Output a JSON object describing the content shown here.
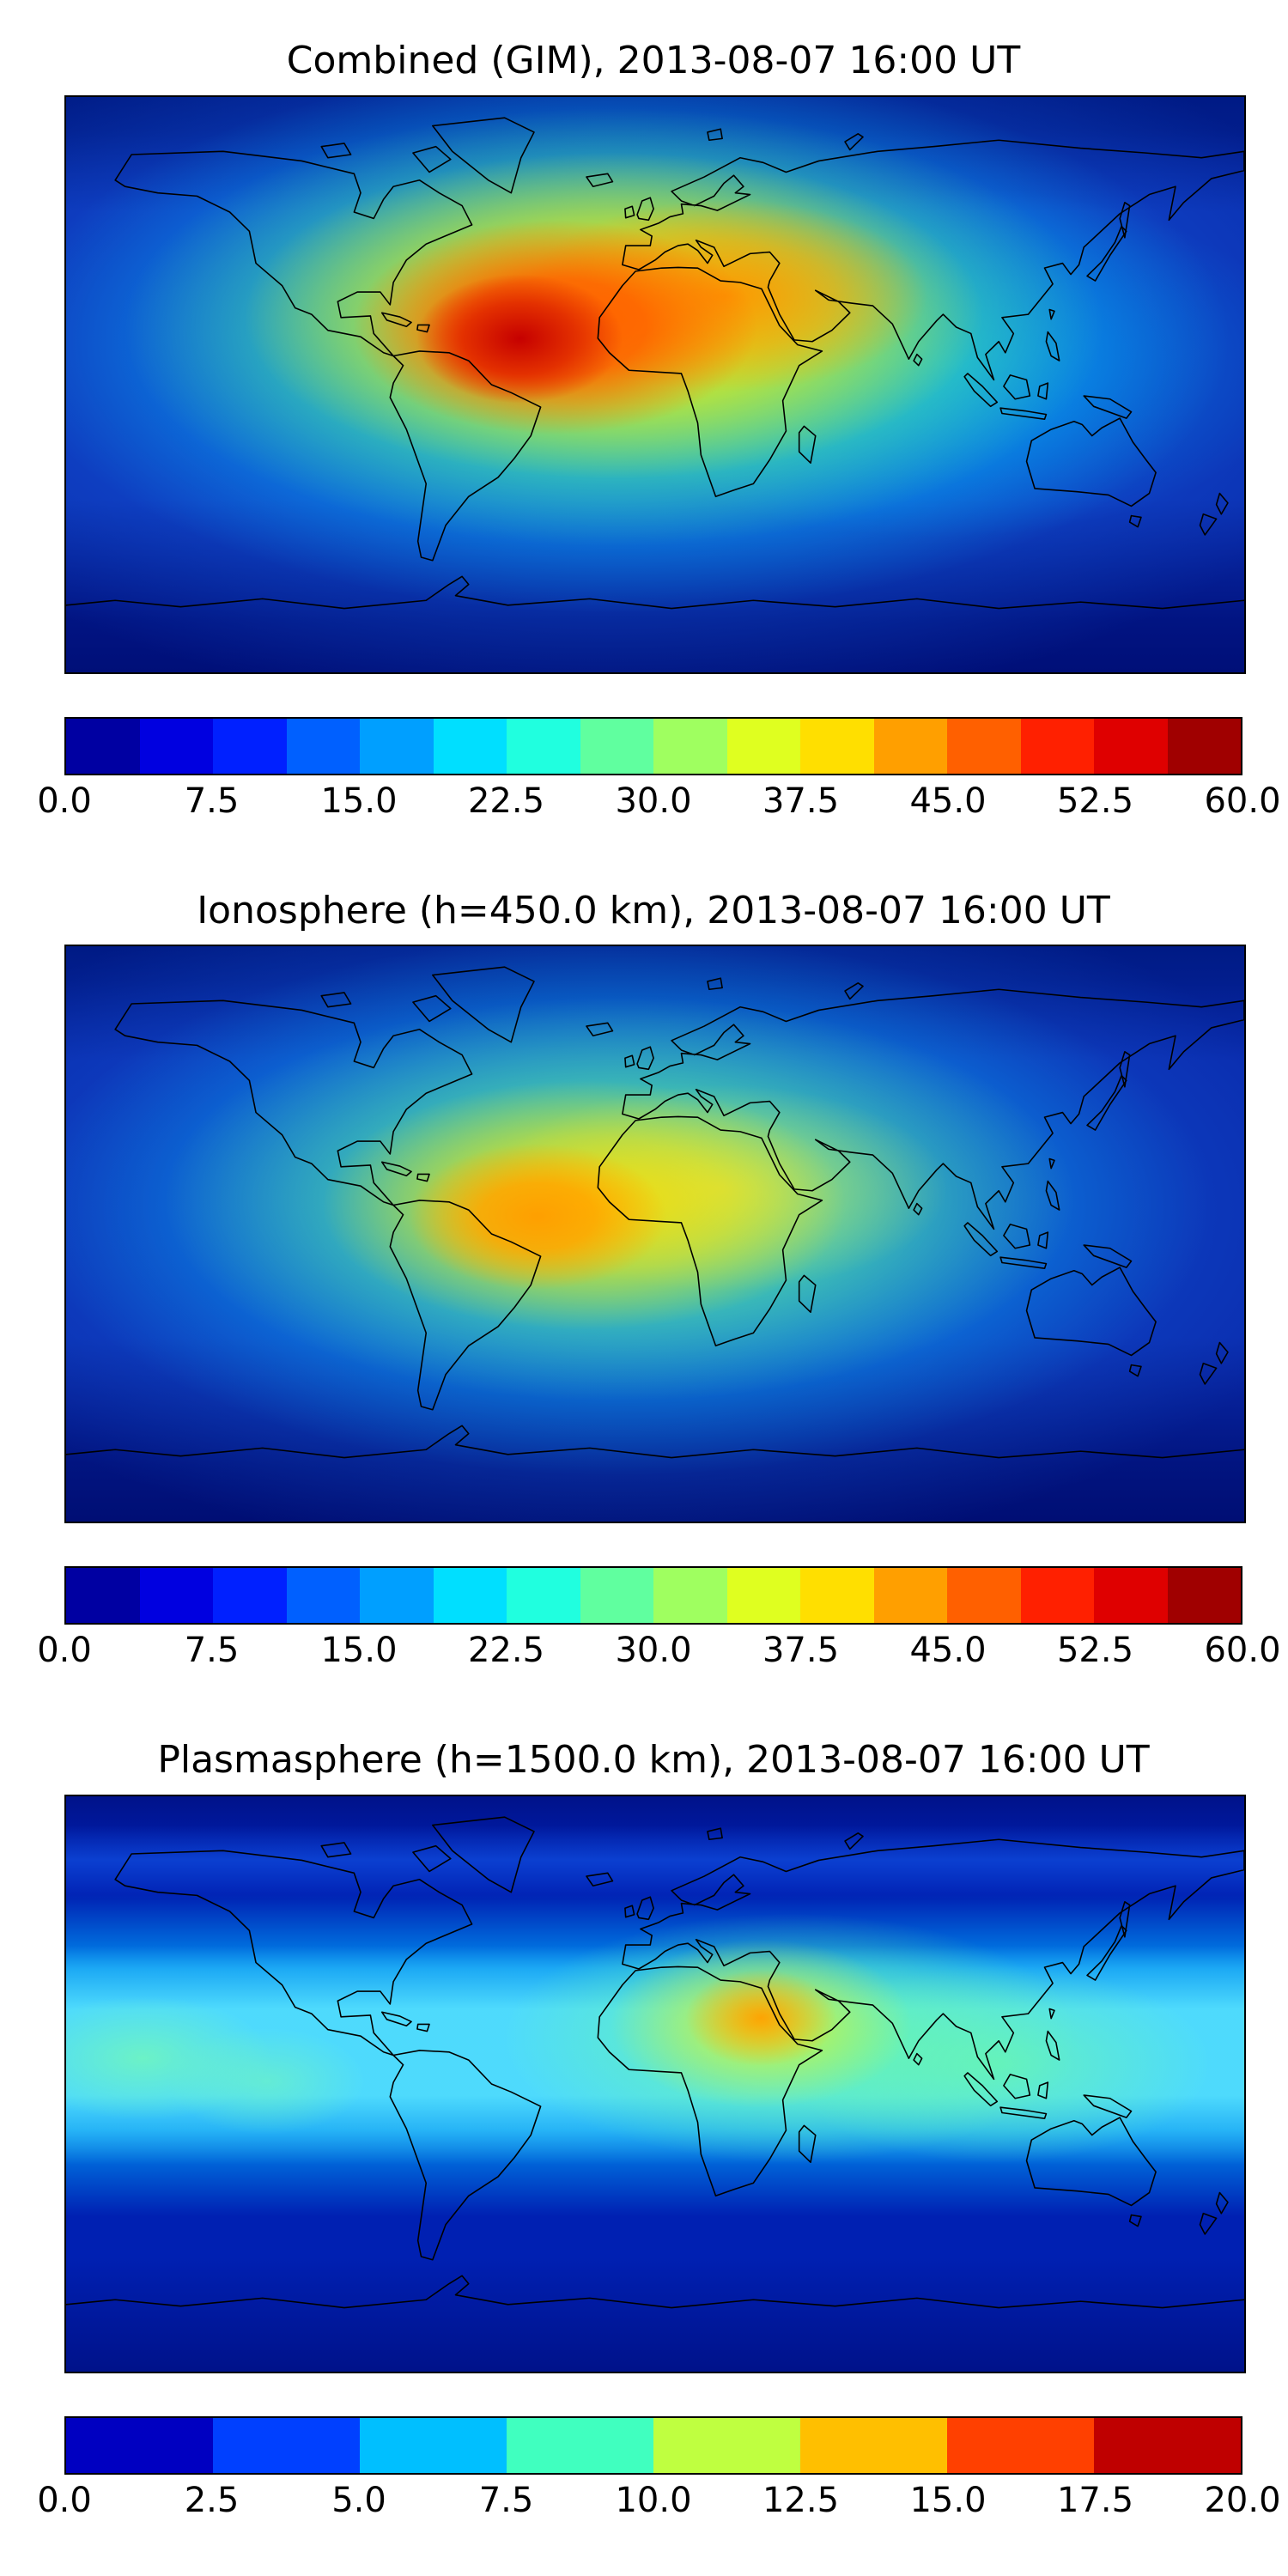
{
  "figure": {
    "background": "#ffffff",
    "outline_color": "#000000",
    "panels": [
      {
        "id": "combined",
        "title": "Combined (GIM), 2013-08-07 16:00 UT",
        "colorbar": {
          "orientation": "horizontal",
          "min": 0.0,
          "max": 60.0,
          "tick_labels": [
            "0.0",
            "7.5",
            "15.0",
            "22.5",
            "30.0",
            "37.5",
            "45.0",
            "52.5",
            "60.0"
          ],
          "segment_colors": [
            "#0000A2",
            "#0000E0",
            "#0020FF",
            "#0060FF",
            "#009FFF",
            "#00DFFF",
            "#20FFDF",
            "#60FF9F",
            "#9FFF60",
            "#DFFF20",
            "#FFDF00",
            "#FF9F00",
            "#FF6000",
            "#FF2000",
            "#DF0000",
            "#A00000"
          ]
        }
      },
      {
        "id": "ionosphere",
        "title": "Ionosphere (h=450.0 km), 2013-08-07 16:00 UT",
        "colorbar": {
          "orientation": "horizontal",
          "min": 0.0,
          "max": 60.0,
          "tick_labels": [
            "0.0",
            "7.5",
            "15.0",
            "22.5",
            "30.0",
            "37.5",
            "45.0",
            "52.5",
            "60.0"
          ],
          "segment_colors": [
            "#0000A2",
            "#0000E0",
            "#0020FF",
            "#0060FF",
            "#009FFF",
            "#00DFFF",
            "#20FFDF",
            "#60FF9F",
            "#9FFF60",
            "#DFFF20",
            "#FFDF00",
            "#FF9F00",
            "#FF6000",
            "#FF2000",
            "#DF0000",
            "#A00000"
          ]
        }
      },
      {
        "id": "plasmasphere",
        "title": "Plasmasphere (h=1500.0 km), 2013-08-07 16:00 UT",
        "colorbar": {
          "orientation": "horizontal",
          "min": 0.0,
          "max": 20.0,
          "tick_labels": [
            "0.0",
            "2.5",
            "5.0",
            "7.5",
            "10.0",
            "12.5",
            "15.0",
            "17.5",
            "20.0"
          ],
          "segment_colors": [
            "#0000C1",
            "#0040FF",
            "#00BFFF",
            "#40FFBF",
            "#BFFF40",
            "#FFBF00",
            "#FF4000",
            "#BF0000"
          ]
        }
      }
    ]
  },
  "chart_data": [
    {
      "type": "heatmap",
      "title": "Combined (GIM), 2013-08-07 16:00 UT",
      "projection": "equirectangular world map",
      "x_range_lon_deg": [
        -180,
        180
      ],
      "y_range_lat_deg": [
        -90,
        90
      ],
      "colormap": "jet, discrete contour levels",
      "level_step": 3.75,
      "value_range": [
        0,
        60
      ],
      "colorbar_ticks": [
        0.0,
        7.5,
        15.0,
        22.5,
        30.0,
        37.5,
        45.0,
        52.5,
        60.0
      ],
      "coastlines": true,
      "estimated_features": [
        {
          "name": "peak",
          "lon": -35,
          "lat": 7,
          "value": 57
        },
        {
          "name": "high-band-atlantic-africa",
          "lon_range": [
            -75,
            50
          ],
          "lat_range": [
            -10,
            30
          ],
          "value_range": [
            30,
            57
          ]
        },
        {
          "name": "mid-latitude-background",
          "value_range": [
            7,
            20
          ]
        },
        {
          "name": "north-polar-low",
          "lat_range": [
            60,
            90
          ],
          "value_range": [
            3,
            10
          ]
        },
        {
          "name": "south-polar-low",
          "lat_range": [
            -90,
            -55
          ],
          "value_range": [
            0,
            7
          ]
        }
      ]
    },
    {
      "type": "heatmap",
      "title": "Ionosphere (h=450.0 km), 2013-08-07 16:00 UT",
      "projection": "equirectangular world map",
      "x_range_lon_deg": [
        -180,
        180
      ],
      "y_range_lat_deg": [
        -90,
        90
      ],
      "colormap": "jet, discrete contour levels",
      "level_step": 3.75,
      "value_range": [
        0,
        60
      ],
      "colorbar_ticks": [
        0.0,
        7.5,
        15.0,
        22.5,
        30.0,
        37.5,
        45.0,
        52.5,
        60.0
      ],
      "coastlines": true,
      "estimated_features": [
        {
          "name": "peak",
          "lon": -40,
          "lat": 2,
          "value": 45
        },
        {
          "name": "high-band-south-america-africa",
          "lon_range": [
            -70,
            40
          ],
          "lat_range": [
            -15,
            20
          ],
          "value_range": [
            25,
            45
          ]
        },
        {
          "name": "mid-latitude-background",
          "value_range": [
            5,
            15
          ]
        },
        {
          "name": "polar-lows",
          "value_range": [
            0,
            7
          ]
        }
      ]
    },
    {
      "type": "heatmap",
      "title": "Plasmasphere (h=1500.0 km), 2013-08-07 16:00 UT",
      "projection": "equirectangular world map",
      "x_range_lon_deg": [
        -180,
        180
      ],
      "y_range_lat_deg": [
        -90,
        90
      ],
      "colormap": "jet, discrete contour levels",
      "level_step": 2.5,
      "value_range": [
        0,
        20
      ],
      "colorbar_ticks": [
        0.0,
        2.5,
        5.0,
        7.5,
        10.0,
        12.5,
        15.0,
        17.5,
        20.0
      ],
      "coastlines": true,
      "estimated_features": [
        {
          "name": "peak",
          "lon": 45,
          "lat": 18,
          "value": 15
        },
        {
          "name": "equatorial-band",
          "lon_range": [
            -180,
            180
          ],
          "lat_range": [
            -25,
            35
          ],
          "value_range": [
            5,
            10
          ]
        },
        {
          "name": "high-latitude-low",
          "value_range": [
            0,
            5
          ]
        }
      ]
    }
  ]
}
